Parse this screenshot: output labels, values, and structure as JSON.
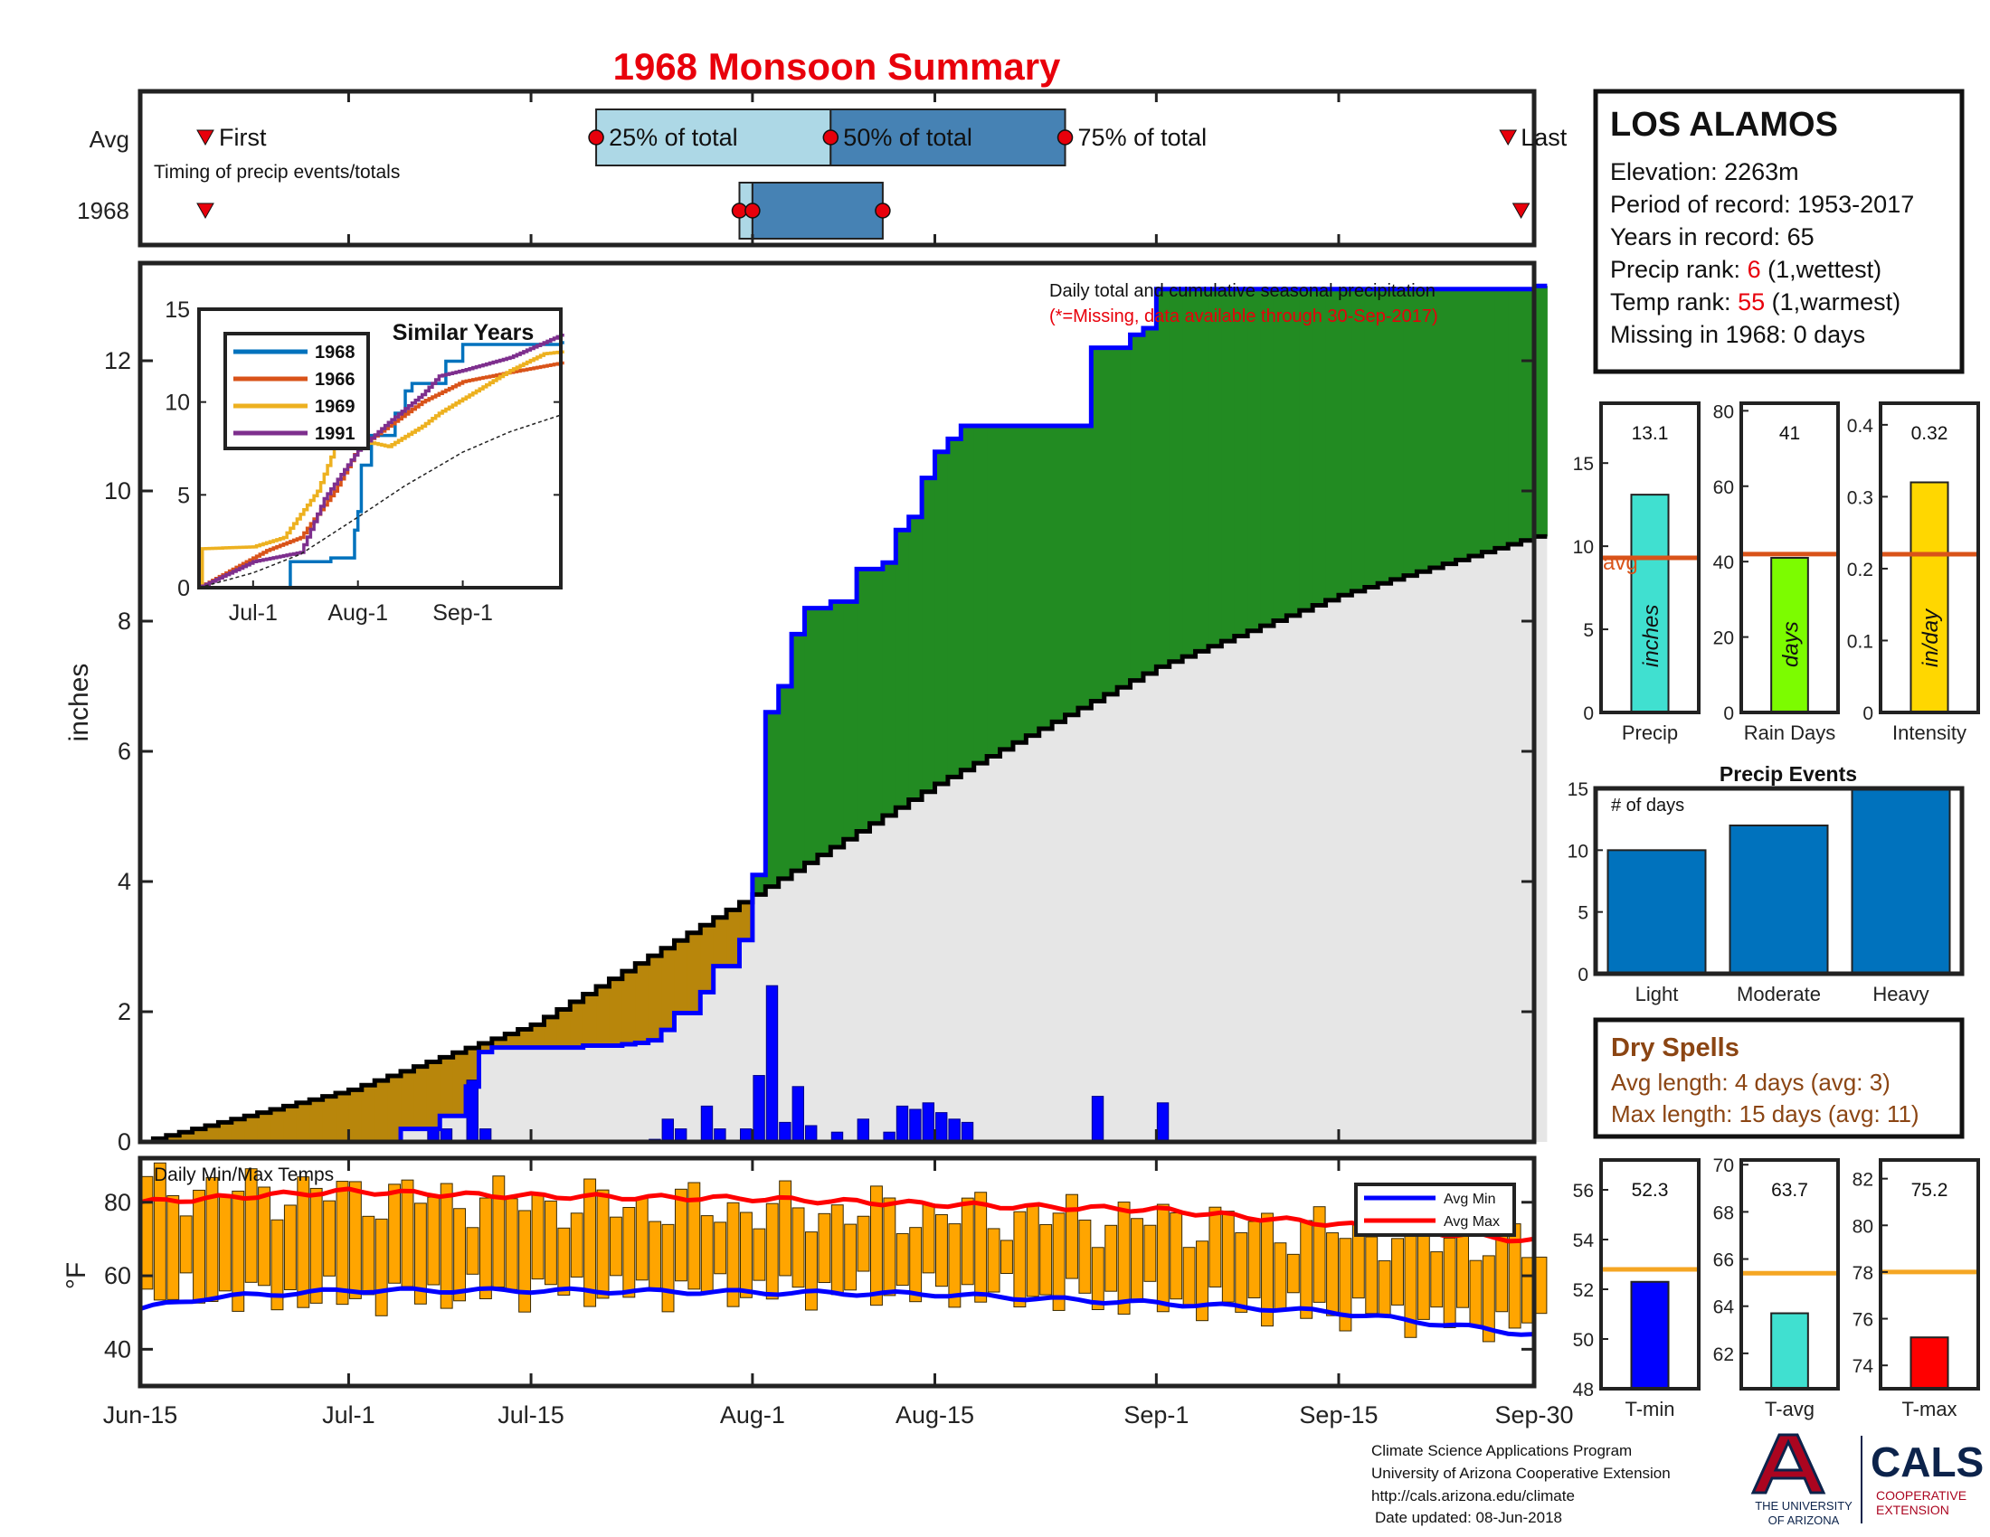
{
  "title": "1968 Monsoon Summary",
  "colors": {
    "title": "#e8000b",
    "year_line": "#0000ff",
    "wet": "#228b22",
    "dry": "#b8860b",
    "clim_fill": "#e6e6e6",
    "daily_bar": "#0000ff",
    "bar25": "#add8e6",
    "bar50": "#4682b4",
    "marker": "#e8000b",
    "temp_bar": "#ffa500",
    "avg_min": "#0000ff",
    "avg_max": "#ff0000",
    "avg_ref": "#d95319",
    "temp_ref": "#f5a623",
    "dry_text": "#8b4513",
    "precip_bar": "#40e0d0",
    "raindays_bar": "#7cfc00",
    "intensity_bar": "#ffd700",
    "events_bar": "#0072bd",
    "tmin_bar": "#0000ff",
    "tavg_bar": "#40e0d0",
    "tmax_bar": "#ff0000",
    "logo_navy": "#0c234b",
    "logo_red": "#ab0520",
    "s1968": "#0072bd",
    "s1966": "#d95319",
    "s1969": "#edb120",
    "s1991": "#7e2f8e"
  },
  "timing": {
    "rows": [
      "Avg",
      "1968"
    ],
    "first_label": "First",
    "last_label": "Last",
    "pct_labels": [
      "25% of total",
      "50% of total",
      "75% of total"
    ],
    "subtitle": "Timing of precip events/totals",
    "avg": {
      "first": "Jun-20",
      "p25": "Jul-20",
      "p50": "Aug-07",
      "p75": "Aug-25",
      "last": "Sep-28"
    },
    "year": {
      "first": "Jun-20",
      "p25": "Jul-31",
      "p50": "Aug-01",
      "p75": "Aug-11",
      "last": "Sep-29"
    }
  },
  "station": {
    "name": "LOS ALAMOS",
    "elevation": "Elevation: 2263m",
    "period": "Period of record: 1953-2017",
    "years": "Years in record: 65",
    "precip_rank_prefix": "Precip rank: ",
    "precip_rank": "6",
    "precip_rank_suffix": " (1,wettest)",
    "temp_rank_prefix": "Temp rank: ",
    "temp_rank": "55",
    "temp_rank_suffix": " (1,warmest)",
    "missing": "Missing in 1968: 0 days"
  },
  "main_chart": {
    "ylabel": "inches",
    "note_line1": "Daily total and cumulative seasonal precipitation",
    "note_line2": "(*=Missing, data available through 30-Sep-2017)"
  },
  "similar_years": {
    "title": "Similar Years",
    "legend": [
      "1968",
      "1966",
      "1969",
      "1991"
    ],
    "x_ticks": [
      "Jul-1",
      "Aug-1",
      "Sep-1"
    ],
    "y_ticks": [
      "0",
      "5",
      "10",
      "15"
    ]
  },
  "temp_chart": {
    "title": "Daily Min/Max Temps",
    "ylabel": "°F",
    "legend": [
      "Avg Min",
      "Avg Max"
    ]
  },
  "x_ticks": [
    "Jun-15",
    "Jul-1",
    "Jul-15",
    "Aug-1",
    "Aug-15",
    "Sep-1",
    "Sep-15",
    "Sep-30"
  ],
  "stat_bars": {
    "precip": {
      "label": "Precip",
      "unit": "inches",
      "value": 13.1,
      "value_text": "13.1",
      "avg": 9.3,
      "avg_label": "avg",
      "ylim": [
        0,
        18.6
      ],
      "ticks": [
        "0",
        "5",
        "10",
        "15"
      ]
    },
    "raindays": {
      "label": "Rain Days",
      "unit": "days",
      "value": 41,
      "value_text": "41",
      "avg": 42,
      "ylim": [
        0,
        82
      ],
      "ticks": [
        "0",
        "20",
        "40",
        "60",
        "80"
      ]
    },
    "intensity": {
      "label": "Intensity",
      "unit": "in/day",
      "value": 0.32,
      "value_text": "0.32",
      "avg": 0.22,
      "ylim": [
        0,
        0.43
      ],
      "ticks": [
        "0",
        "0.1",
        "0.2",
        "0.3",
        "0.4"
      ]
    }
  },
  "precip_events": {
    "title": "Precip Events",
    "ylabel_inline": "# of days",
    "categories": [
      "Light",
      "Moderate",
      "Heavy"
    ],
    "values": [
      10,
      12,
      15
    ],
    "ylim": [
      0,
      15
    ],
    "ticks": [
      "0",
      "5",
      "10",
      "15"
    ]
  },
  "dry_spells": {
    "title": "Dry Spells",
    "avg_length": "Avg length: 4 days (avg: 3)",
    "max_length": "Max length: 15 days (avg: 11)"
  },
  "temp_bars": {
    "tmin": {
      "label": "T-min",
      "value": 52.3,
      "value_text": "52.3",
      "avg": 52.8,
      "ylim": [
        48,
        57.2
      ],
      "ticks": [
        "48",
        "50",
        "52",
        "54",
        "56"
      ]
    },
    "tavg": {
      "label": "T-avg",
      "value": 63.7,
      "value_text": "63.7",
      "avg": 65.4,
      "ylim": [
        60.5,
        70.2
      ],
      "ticks": [
        "62",
        "64",
        "66",
        "68",
        "70"
      ]
    },
    "tmax": {
      "label": "T-max",
      "value": 75.2,
      "value_text": "75.2",
      "avg": 78,
      "ylim": [
        73,
        82.8
      ],
      "ticks": [
        "74",
        "76",
        "78",
        "80",
        "82"
      ]
    }
  },
  "footer": {
    "line1": "Climate Science Applications Program",
    "line2": "University of Arizona Cooperative Extension",
    "line3": "http://cals.arizona.edu/climate",
    "line4": "Date updated: 08-Jun-2018",
    "logo_ua_1": "THE UNIVERSITY",
    "logo_ua_2": "OF ARIZONA",
    "logo_cals": "CALS",
    "logo_coop_1": "COOPERATIVE",
    "logo_coop_2": "EXTENSION"
  },
  "chart_data": [
    {
      "type": "area",
      "title": "1968 Monsoon Summary",
      "xlabel": "",
      "ylabel": "inches",
      "xlim": [
        "Jun-15",
        "Sep-30"
      ],
      "ylim": [
        0,
        13.5
      ],
      "y_ticks": [
        0,
        2,
        4,
        6,
        8,
        10,
        12
      ],
      "series": [
        {
          "name": "1968 cumulative",
          "points": [
            [
              "Jun-15",
              0
            ],
            [
              "Jul-5",
              0.2
            ],
            [
              "Jul-8",
              0.4
            ],
            [
              "Jul-10",
              0.85
            ],
            [
              "Jul-11",
              1.38
            ],
            [
              "Jul-12",
              1.45
            ],
            [
              "Jul-19",
              1.48
            ],
            [
              "Jul-22",
              1.5
            ],
            [
              "Jul-23",
              1.52
            ],
            [
              "Jul-24",
              1.56
            ],
            [
              "Jul-25",
              1.72
            ],
            [
              "Jul-26",
              1.98
            ],
            [
              "Jul-28",
              2.3
            ],
            [
              "Jul-29",
              2.7
            ],
            [
              "Jul-31",
              3.1
            ],
            [
              "Aug-1",
              4.1
            ],
            [
              "Aug-2",
              6.6
            ],
            [
              "Aug-3",
              7.0
            ],
            [
              "Aug-4",
              7.8
            ],
            [
              "Aug-5",
              8.2
            ],
            [
              "Aug-7",
              8.3
            ],
            [
              "Aug-9",
              8.8
            ],
            [
              "Aug-11",
              8.9
            ],
            [
              "Aug-12",
              9.4
            ],
            [
              "Aug-13",
              9.6
            ],
            [
              "Aug-14",
              10.2
            ],
            [
              "Aug-15",
              10.6
            ],
            [
              "Aug-16",
              10.8
            ],
            [
              "Aug-17",
              11.0
            ],
            [
              "Aug-20",
              11.0
            ],
            [
              "Aug-27",
              12.2
            ],
            [
              "Aug-30",
              12.4
            ],
            [
              "Aug-31",
              12.5
            ],
            [
              "Sep-1",
              13.1
            ],
            [
              "Sep-30",
              13.15
            ]
          ]
        },
        {
          "name": "average cumulative",
          "points": [
            [
              "Jun-15",
              0
            ],
            [
              "Jul-1",
              0.8
            ],
            [
              "Jul-15",
              1.8
            ],
            [
              "Aug-1",
              3.8
            ],
            [
              "Aug-15",
              5.5
            ],
            [
              "Sep-1",
              7.3
            ],
            [
              "Sep-15",
              8.4
            ],
            [
              "Sep-30",
              9.3
            ]
          ]
        }
      ],
      "daily": {
        "name": "daily precipitation",
        "dates": [
          "Jul-7",
          "Jul-8",
          "Jul-10",
          "Jul-11",
          "Jul-24",
          "Jul-25",
          "Jul-26",
          "Jul-28",
          "Jul-29",
          "Jul-31",
          "Aug-1",
          "Aug-2",
          "Aug-3",
          "Aug-4",
          "Aug-5",
          "Aug-7",
          "Aug-9",
          "Aug-11",
          "Aug-12",
          "Aug-13",
          "Aug-14",
          "Aug-15",
          "Aug-16",
          "Aug-17",
          "Aug-27",
          "Sep-1"
        ],
        "values": [
          0.2,
          0.2,
          0.95,
          0.2,
          0.04,
          0.35,
          0.2,
          0.55,
          0.2,
          0.2,
          1.02,
          2.4,
          0.3,
          0.85,
          0.25,
          0.15,
          0.35,
          0.15,
          0.55,
          0.5,
          0.6,
          0.45,
          0.35,
          0.3,
          0.7,
          0.6
        ]
      }
    },
    {
      "type": "line",
      "title": "Similar Years",
      "xlim": [
        "Jun-15",
        "Sep-30"
      ],
      "ylim": [
        0,
        15
      ],
      "series": [
        {
          "name": "1968",
          "points": [
            [
              "Jun-15",
              0
            ],
            [
              "Jul-10",
              0
            ],
            [
              "Jul-12",
              1.4
            ],
            [
              "Jul-24",
              1.6
            ],
            [
              "Jul-31",
              3.1
            ],
            [
              "Aug-1",
              4.1
            ],
            [
              "Aug-2",
              6.6
            ],
            [
              "Aug-5",
              8.2
            ],
            [
              "Aug-12",
              9.4
            ],
            [
              "Aug-15",
              10.6
            ],
            [
              "Aug-17",
              11.0
            ],
            [
              "Aug-27",
              12.2
            ],
            [
              "Sep-1",
              13.1
            ],
            [
              "Sep-30",
              13.2
            ]
          ]
        },
        {
          "name": "1966",
          "points": [
            [
              "Jun-15",
              0
            ],
            [
              "Jul-5",
              2.0
            ],
            [
              "Jul-15",
              2.7
            ],
            [
              "Jul-25",
              5.2
            ],
            [
              "Aug-1",
              7.5
            ],
            [
              "Aug-10",
              8.7
            ],
            [
              "Aug-20",
              10.0
            ],
            [
              "Sep-1",
              11.1
            ],
            [
              "Sep-15",
              11.6
            ],
            [
              "Sep-30",
              12.1
            ]
          ]
        },
        {
          "name": "1969",
          "points": [
            [
              "Jun-15",
              0
            ],
            [
              "Jun-16",
              2.1
            ],
            [
              "Jul-1",
              2.2
            ],
            [
              "Jul-10",
              2.7
            ],
            [
              "Jul-20",
              5.2
            ],
            [
              "Jul-25",
              7.5
            ],
            [
              "Aug-5",
              7.8
            ],
            [
              "Aug-10",
              7.6
            ],
            [
              "Aug-20",
              8.7
            ],
            [
              "Aug-25",
              9.4
            ],
            [
              "Sep-5",
              10.6
            ],
            [
              "Sep-15",
              11.7
            ],
            [
              "Sep-25",
              12.6
            ],
            [
              "Sep-30",
              12.7
            ]
          ]
        },
        {
          "name": "1991",
          "points": [
            [
              "Jun-15",
              0
            ],
            [
              "Jul-1",
              1.4
            ],
            [
              "Jul-15",
              1.9
            ],
            [
              "Jul-22",
              4.8
            ],
            [
              "Aug-1",
              7.4
            ],
            [
              "Aug-10",
              8.9
            ],
            [
              "Aug-20",
              10.4
            ],
            [
              "Aug-25",
              11.4
            ],
            [
              "Sep-1",
              11.7
            ],
            [
              "Sep-15",
              12.4
            ],
            [
              "Sep-30",
              13.6
            ]
          ]
        },
        {
          "name": "average",
          "points": [
            [
              "Jun-15",
              0
            ],
            [
              "Jul-1",
              0.8
            ],
            [
              "Jul-15",
              1.8
            ],
            [
              "Aug-1",
              3.8
            ],
            [
              "Aug-15",
              5.5
            ],
            [
              "Sep-1",
              7.3
            ],
            [
              "Sep-15",
              8.4
            ],
            [
              "Sep-30",
              9.3
            ]
          ]
        }
      ]
    },
    {
      "type": "bar",
      "title": "Daily Min/Max Temps",
      "ylabel": "°F",
      "xlim": [
        "Jun-15",
        "Sep-30"
      ],
      "ylim": [
        30,
        92
      ],
      "y_ticks": [
        40,
        60,
        80
      ],
      "min_profile": [
        [
          "Jun-15",
          55
        ],
        [
          "Jul-1",
          54
        ],
        [
          "Jul-15",
          56
        ],
        [
          "Aug-1",
          56
        ],
        [
          "Aug-15",
          56
        ],
        [
          "Sep-1",
          53
        ],
        [
          "Sep-15",
          50
        ],
        [
          "Sep-30",
          46
        ]
      ],
      "max_profile": [
        [
          "Jun-15",
          84
        ],
        [
          "Jul-1",
          82
        ],
        [
          "Jul-15",
          80
        ],
        [
          "Aug-1",
          78
        ],
        [
          "Aug-15",
          77
        ],
        [
          "Sep-1",
          75
        ],
        [
          "Sep-15",
          72
        ],
        [
          "Sep-30",
          68
        ]
      ],
      "series": [
        {
          "name": "Avg Min",
          "points": [
            [
              "Jun-15",
              51
            ],
            [
              "Jun-20",
              54
            ],
            [
              "Jun-25",
              55
            ],
            [
              "Jul-1",
              56
            ],
            [
              "Jul-15",
              56
            ],
            [
              "Aug-1",
              55.5
            ],
            [
              "Aug-15",
              55
            ],
            [
              "Aug-25",
              53.5
            ],
            [
              "Sep-5",
              52
            ],
            [
              "Sep-15",
              50
            ],
            [
              "Sep-30",
              44
            ]
          ]
        },
        {
          "name": "Avg Max",
          "points": [
            [
              "Jun-15",
              80
            ],
            [
              "Jun-25",
              82
            ],
            [
              "Jul-1",
              83
            ],
            [
              "Jul-10",
              82
            ],
            [
              "Jul-20",
              81.5
            ],
            [
              "Aug-1",
              81
            ],
            [
              "Aug-10",
              80
            ],
            [
              "Aug-20",
              79
            ],
            [
              "Sep-1",
              78
            ],
            [
              "Sep-15",
              74
            ],
            [
              "Sep-30",
              69.5
            ]
          ]
        }
      ]
    },
    {
      "type": "bar",
      "title": "Precip Events",
      "categories": [
        "Light",
        "Moderate",
        "Heavy"
      ],
      "values": [
        10,
        12,
        15
      ],
      "ylim": [
        0,
        15
      ]
    },
    {
      "type": "bar",
      "categories": [
        "Precip",
        "Rain Days",
        "Intensity"
      ],
      "series": [
        {
          "name": "1968",
          "values": [
            13.1,
            41,
            0.32
          ]
        },
        {
          "name": "avg",
          "values": [
            9.3,
            42,
            0.22
          ]
        }
      ]
    },
    {
      "type": "bar",
      "categories": [
        "T-min",
        "T-avg",
        "T-max"
      ],
      "series": [
        {
          "values": [
            52.3,
            63.7,
            75.2
          ]
        },
        {
          "values": [
            52.8,
            65.4,
            78
          ]
        }
      ]
    }
  ]
}
